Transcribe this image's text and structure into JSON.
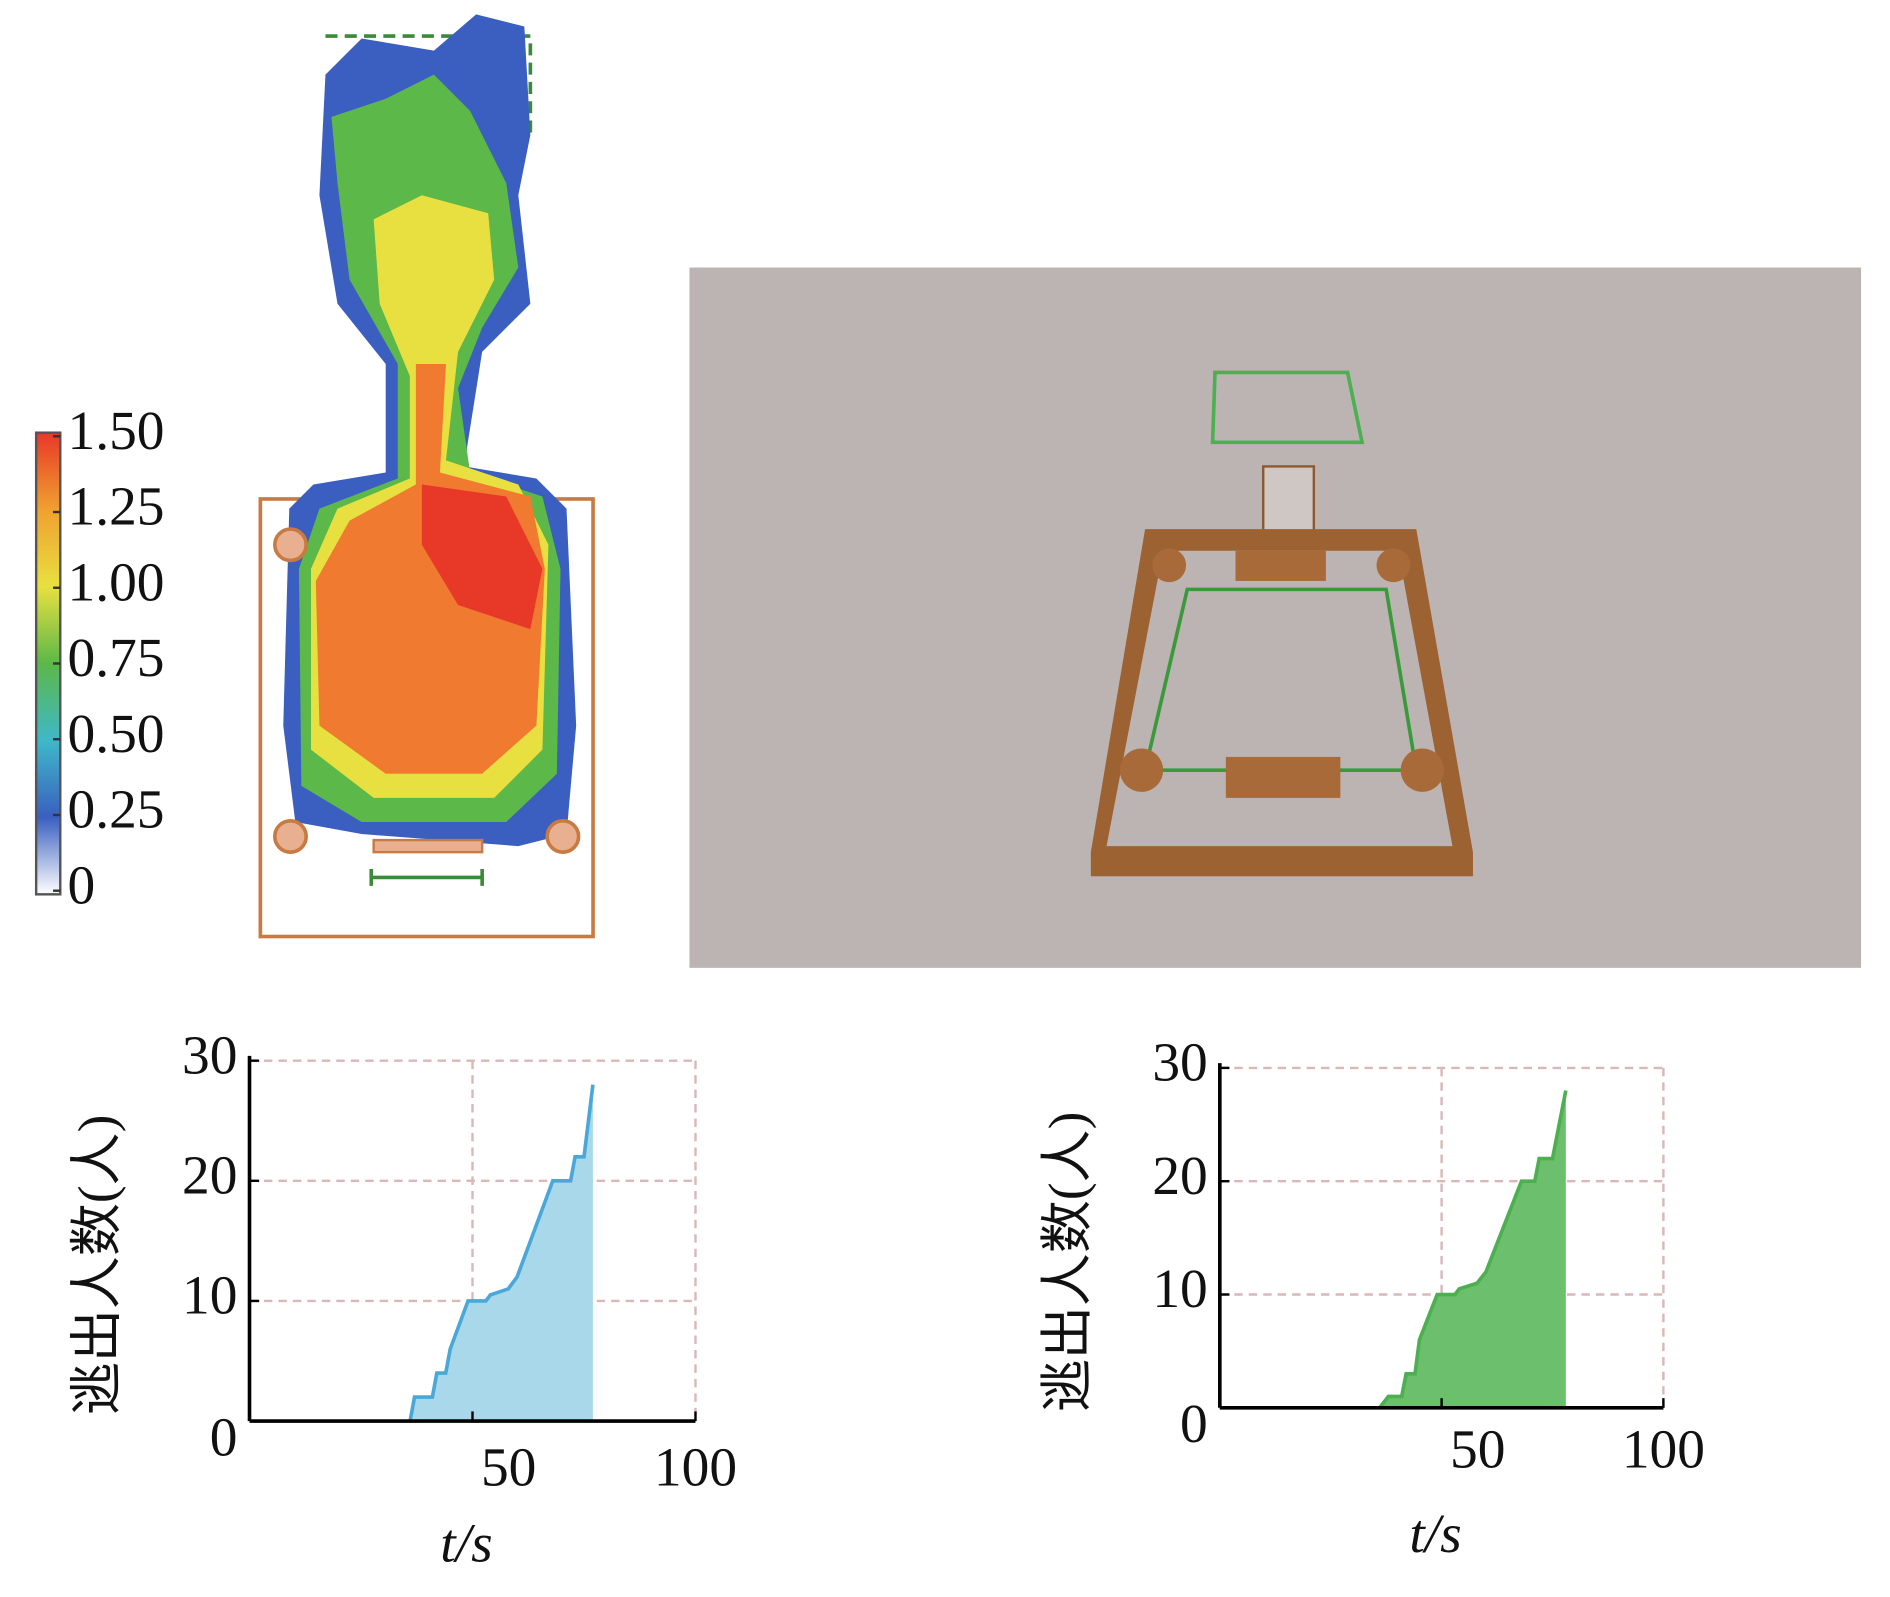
{
  "chart_data": [
    {
      "type": "heatmap",
      "zlim": [
        0,
        1.5
      ],
      "zticks": [
        {
          "value": 1.5,
          "label": "1.50"
        },
        {
          "value": 1.25,
          "label": "1.25"
        },
        {
          "value": 1,
          "label": "1.00"
        },
        {
          "value": 0.75,
          "label": "0.75"
        },
        {
          "value": 0.5,
          "label": "0.50"
        },
        {
          "value": 0.25,
          "label": "0.25"
        },
        0
      ],
      "colors": [
        "#ffffff",
        "#3a5fc0",
        "#3fb8c8",
        "#5cb848",
        "#e8e040",
        "#f0a030",
        "#e83828"
      ]
    },
    {
      "type": "area",
      "ylabel": "逃出人数(人)",
      "xlabel": "t/s",
      "xlim": [
        0,
        100
      ],
      "ylim": [
        0,
        30
      ],
      "xticks": [
        50,
        100
      ],
      "yticks": [
        0,
        10,
        20,
        30
      ],
      "grid": true,
      "color": "#4aa8d8",
      "fill": "#a8d8ea",
      "x": [
        36,
        37,
        41,
        42,
        44,
        45,
        47,
        49,
        53,
        54,
        58,
        60,
        62,
        64,
        66,
        68,
        72,
        73,
        75,
        77
      ],
      "values": [
        0,
        2,
        2,
        4,
        4,
        6,
        8,
        10,
        10,
        10.5,
        11,
        12,
        14,
        16,
        18,
        20,
        20,
        22,
        22,
        28
      ]
    },
    {
      "type": "area",
      "ylabel": "逃出人数(人)",
      "xlabel": "t/s",
      "xlim": [
        0,
        100
      ],
      "ylim": [
        0,
        30
      ],
      "xticks": [
        50,
        100
      ],
      "yticks": [
        0,
        10,
        20,
        30
      ],
      "grid": true,
      "color": "#4caf50",
      "fill": "#6cbf6c",
      "x": [
        36,
        38,
        41,
        42,
        44,
        45,
        47,
        49,
        53,
        54,
        58,
        60,
        62,
        64,
        66,
        68,
        71,
        72,
        75,
        78
      ],
      "values": [
        0,
        1,
        1,
        3,
        3,
        6,
        8,
        10,
        10,
        10.5,
        11,
        12,
        14,
        16,
        18,
        20,
        20,
        22,
        22,
        28
      ]
    }
  ]
}
